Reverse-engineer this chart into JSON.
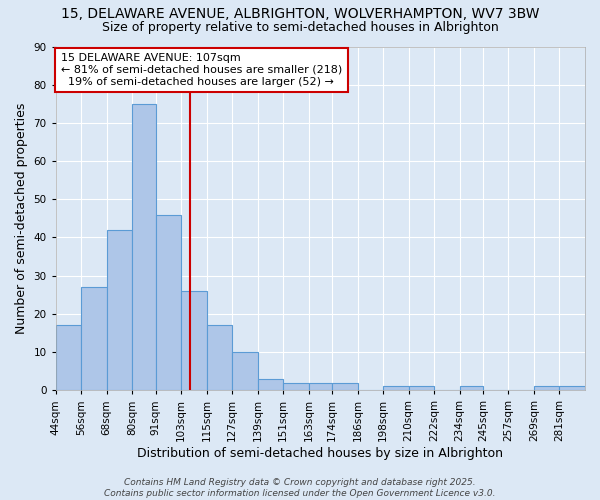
{
  "title_line1": "15, DELAWARE AVENUE, ALBRIGHTON, WOLVERHAMPTON, WV7 3BW",
  "title_line2": "Size of property relative to semi-detached houses in Albrighton",
  "xlabel": "Distribution of semi-detached houses by size in Albrighton",
  "ylabel": "Number of semi-detached properties",
  "bin_labels": [
    "44sqm",
    "56sqm",
    "68sqm",
    "80sqm",
    "91sqm",
    "103sqm",
    "115sqm",
    "127sqm",
    "139sqm",
    "151sqm",
    "163sqm",
    "174sqm",
    "186sqm",
    "198sqm",
    "210sqm",
    "222sqm",
    "234sqm",
    "245sqm",
    "257sqm",
    "269sqm",
    "281sqm"
  ],
  "bin_edges": [
    44,
    56,
    68,
    80,
    91,
    103,
    115,
    127,
    139,
    151,
    163,
    174,
    186,
    198,
    210,
    222,
    234,
    245,
    257,
    269,
    281,
    293
  ],
  "bar_heights": [
    17,
    27,
    42,
    75,
    46,
    26,
    17,
    10,
    3,
    2,
    2,
    2,
    0,
    1,
    1,
    0,
    1,
    0,
    0,
    1,
    1
  ],
  "bar_color": "#aec6e8",
  "bar_edge_color": "#5b9bd5",
  "vline_x": 107,
  "vline_color": "#cc0000",
  "annotation_line1": "15 DELAWARE AVENUE: 107sqm",
  "annotation_line2": "← 81% of semi-detached houses are smaller (218)",
  "annotation_line3": "  19% of semi-detached houses are larger (52) →",
  "annotation_box_color": "#ffffff",
  "annotation_box_edge": "#cc0000",
  "ylim": [
    0,
    90
  ],
  "yticks": [
    0,
    10,
    20,
    30,
    40,
    50,
    60,
    70,
    80,
    90
  ],
  "footer_line1": "Contains HM Land Registry data © Crown copyright and database right 2025.",
  "footer_line2": "Contains public sector information licensed under the Open Government Licence v3.0.",
  "background_color": "#dce8f5",
  "plot_background": "#dce8f5",
  "grid_color": "#ffffff",
  "title_fontsize": 10,
  "subtitle_fontsize": 9,
  "axis_label_fontsize": 9,
  "tick_fontsize": 7.5,
  "annotation_fontsize": 8,
  "footer_fontsize": 6.5
}
